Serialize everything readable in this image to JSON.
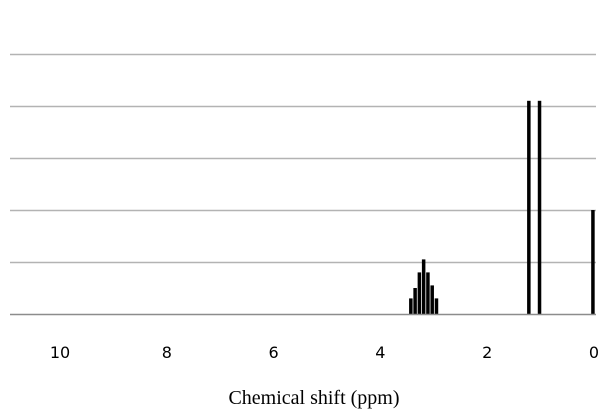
{
  "chart_data": {
    "type": "bar",
    "title": "",
    "xlabel": "Chemical shift (ppm)",
    "ylabel": "",
    "xlim": [
      10,
      0
    ],
    "x_reversed": true,
    "ylim": [
      0,
      5.5
    ],
    "grid": true,
    "grid_lines_y": [
      1,
      2,
      3,
      4,
      5
    ],
    "x_ticks": [
      "10",
      "8",
      "6",
      "4",
      "2",
      "0"
    ],
    "x_tick_values": [
      10,
      8,
      6,
      4,
      2,
      0
    ],
    "colors": {
      "bars": "#000000",
      "grid": "#b3b3b3",
      "axis": "#8c8c8c",
      "background": "#ffffff"
    },
    "series": [
      {
        "name": "",
        "points": [
          {
            "x": 3.43,
            "y": 0.3
          },
          {
            "x": 3.35,
            "y": 0.5
          },
          {
            "x": 3.27,
            "y": 0.8
          },
          {
            "x": 3.19,
            "y": 1.05
          },
          {
            "x": 3.11,
            "y": 0.8
          },
          {
            "x": 3.03,
            "y": 0.55
          },
          {
            "x": 2.95,
            "y": 0.3
          },
          {
            "x": 2.87,
            "y": 0.0
          },
          {
            "x": 1.22,
            "y": 4.1
          },
          {
            "x": 1.02,
            "y": 4.1
          },
          {
            "x": 0.02,
            "y": 2.0
          }
        ]
      }
    ]
  }
}
